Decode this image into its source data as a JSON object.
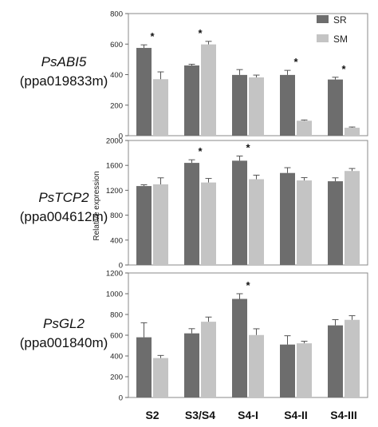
{
  "ylabel": "Relative expression",
  "categories": [
    "S2",
    "S3/S4",
    "S4-I",
    "S4-II",
    "S4-III"
  ],
  "legend": [
    {
      "name": "SR",
      "color": "#6d6d6d"
    },
    {
      "name": "SM",
      "color": "#c4c4c4"
    }
  ],
  "chart_data": [
    {
      "type": "bar",
      "gene": "PsABI5",
      "gene_id": "(ppa019833m)",
      "ylim": [
        0,
        800
      ],
      "yticks": [
        0,
        200,
        400,
        600,
        800
      ],
      "categories": [
        "S2",
        "S3/S4",
        "S4-I",
        "S4-II",
        "S4-III"
      ],
      "series": [
        {
          "name": "SR",
          "values": [
            575,
            460,
            398,
            398,
            368
          ],
          "errors": [
            20,
            8,
            35,
            30,
            15
          ]
        },
        {
          "name": "SM",
          "values": [
            370,
            598,
            382,
            98,
            52
          ],
          "errors": [
            48,
            20,
            15,
            5,
            5
          ]
        }
      ],
      "significant": [
        "*",
        "*",
        "",
        "*",
        "*"
      ]
    },
    {
      "type": "bar",
      "gene": "PsTCP2",
      "gene_id": "(ppa004612m)",
      "ylim": [
        0,
        2000
      ],
      "yticks": [
        0,
        400,
        800,
        1200,
        1600,
        2000
      ],
      "categories": [
        "S2",
        "S3/S4",
        "S4-I",
        "S4-II",
        "S4-III"
      ],
      "series": [
        {
          "name": "SR",
          "values": [
            1268,
            1640,
            1675,
            1478,
            1345
          ],
          "errors": [
            20,
            50,
            75,
            85,
            55
          ]
        },
        {
          "name": "SM",
          "values": [
            1295,
            1325,
            1378,
            1358,
            1510
          ],
          "errors": [
            105,
            65,
            65,
            45,
            40
          ]
        }
      ],
      "significant": [
        "",
        "*",
        "*",
        "",
        ""
      ]
    },
    {
      "type": "bar",
      "gene": "PsGL2",
      "gene_id": "(ppa001840m)",
      "ylim": [
        0,
        1200
      ],
      "yticks": [
        0,
        200,
        400,
        600,
        800,
        1000,
        1200
      ],
      "categories": [
        "S2",
        "S3/S4",
        "S4-I",
        "S4-II",
        "S4-III"
      ],
      "series": [
        {
          "name": "SR",
          "values": [
            580,
            618,
            950,
            510,
            695
          ],
          "errors": [
            140,
            45,
            50,
            85,
            55
          ]
        },
        {
          "name": "SM",
          "values": [
            380,
            730,
            602,
            522,
            748
          ],
          "errors": [
            25,
            45,
            60,
            20,
            40
          ]
        }
      ],
      "significant": [
        "",
        "",
        "*",
        "",
        ""
      ]
    }
  ]
}
